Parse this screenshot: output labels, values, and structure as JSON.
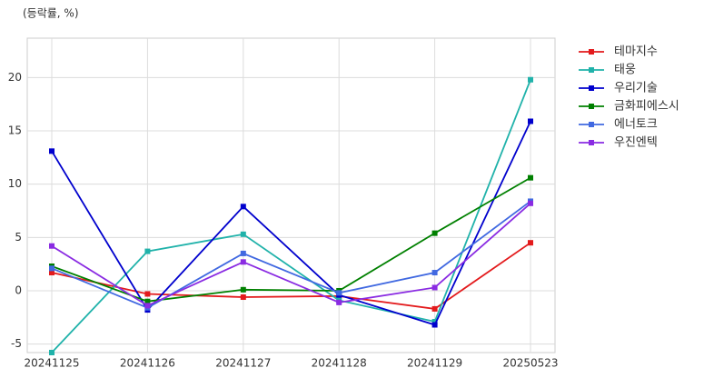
{
  "chart_data": {
    "type": "line",
    "title": "(등락률, %)",
    "categories": [
      "20241125",
      "20241126",
      "20241127",
      "20241128",
      "20241129",
      "20250523"
    ],
    "series": [
      {
        "name": "테마지수",
        "color": "#e31a1c",
        "values": [
          1.7,
          -0.3,
          -0.6,
          -0.5,
          -1.7,
          4.5
        ]
      },
      {
        "name": "태웅",
        "color": "#20b2aa",
        "values": [
          -5.8,
          3.7,
          5.3,
          -0.9,
          -2.9,
          19.8
        ]
      },
      {
        "name": "우리기술",
        "color": "#0000cd",
        "values": [
          13.1,
          -1.8,
          7.9,
          -0.4,
          -3.2,
          15.9
        ]
      },
      {
        "name": "금화피에스시",
        "color": "#008000",
        "values": [
          2.3,
          -1.0,
          0.1,
          0.0,
          5.4,
          10.6
        ]
      },
      {
        "name": "에너토크",
        "color": "#4169e1",
        "values": [
          2.1,
          -1.6,
          3.5,
          -0.2,
          1.7,
          8.4
        ]
      },
      {
        "name": "우진엔텍",
        "color": "#8a2be2",
        "values": [
          4.2,
          -1.4,
          2.7,
          -1.1,
          0.3,
          8.2
        ]
      }
    ],
    "ylim": [
      -5.8,
      23.7
    ],
    "yticks": [
      -5,
      0,
      5,
      10,
      15,
      20
    ],
    "grid": true,
    "legend": "outside-right"
  }
}
